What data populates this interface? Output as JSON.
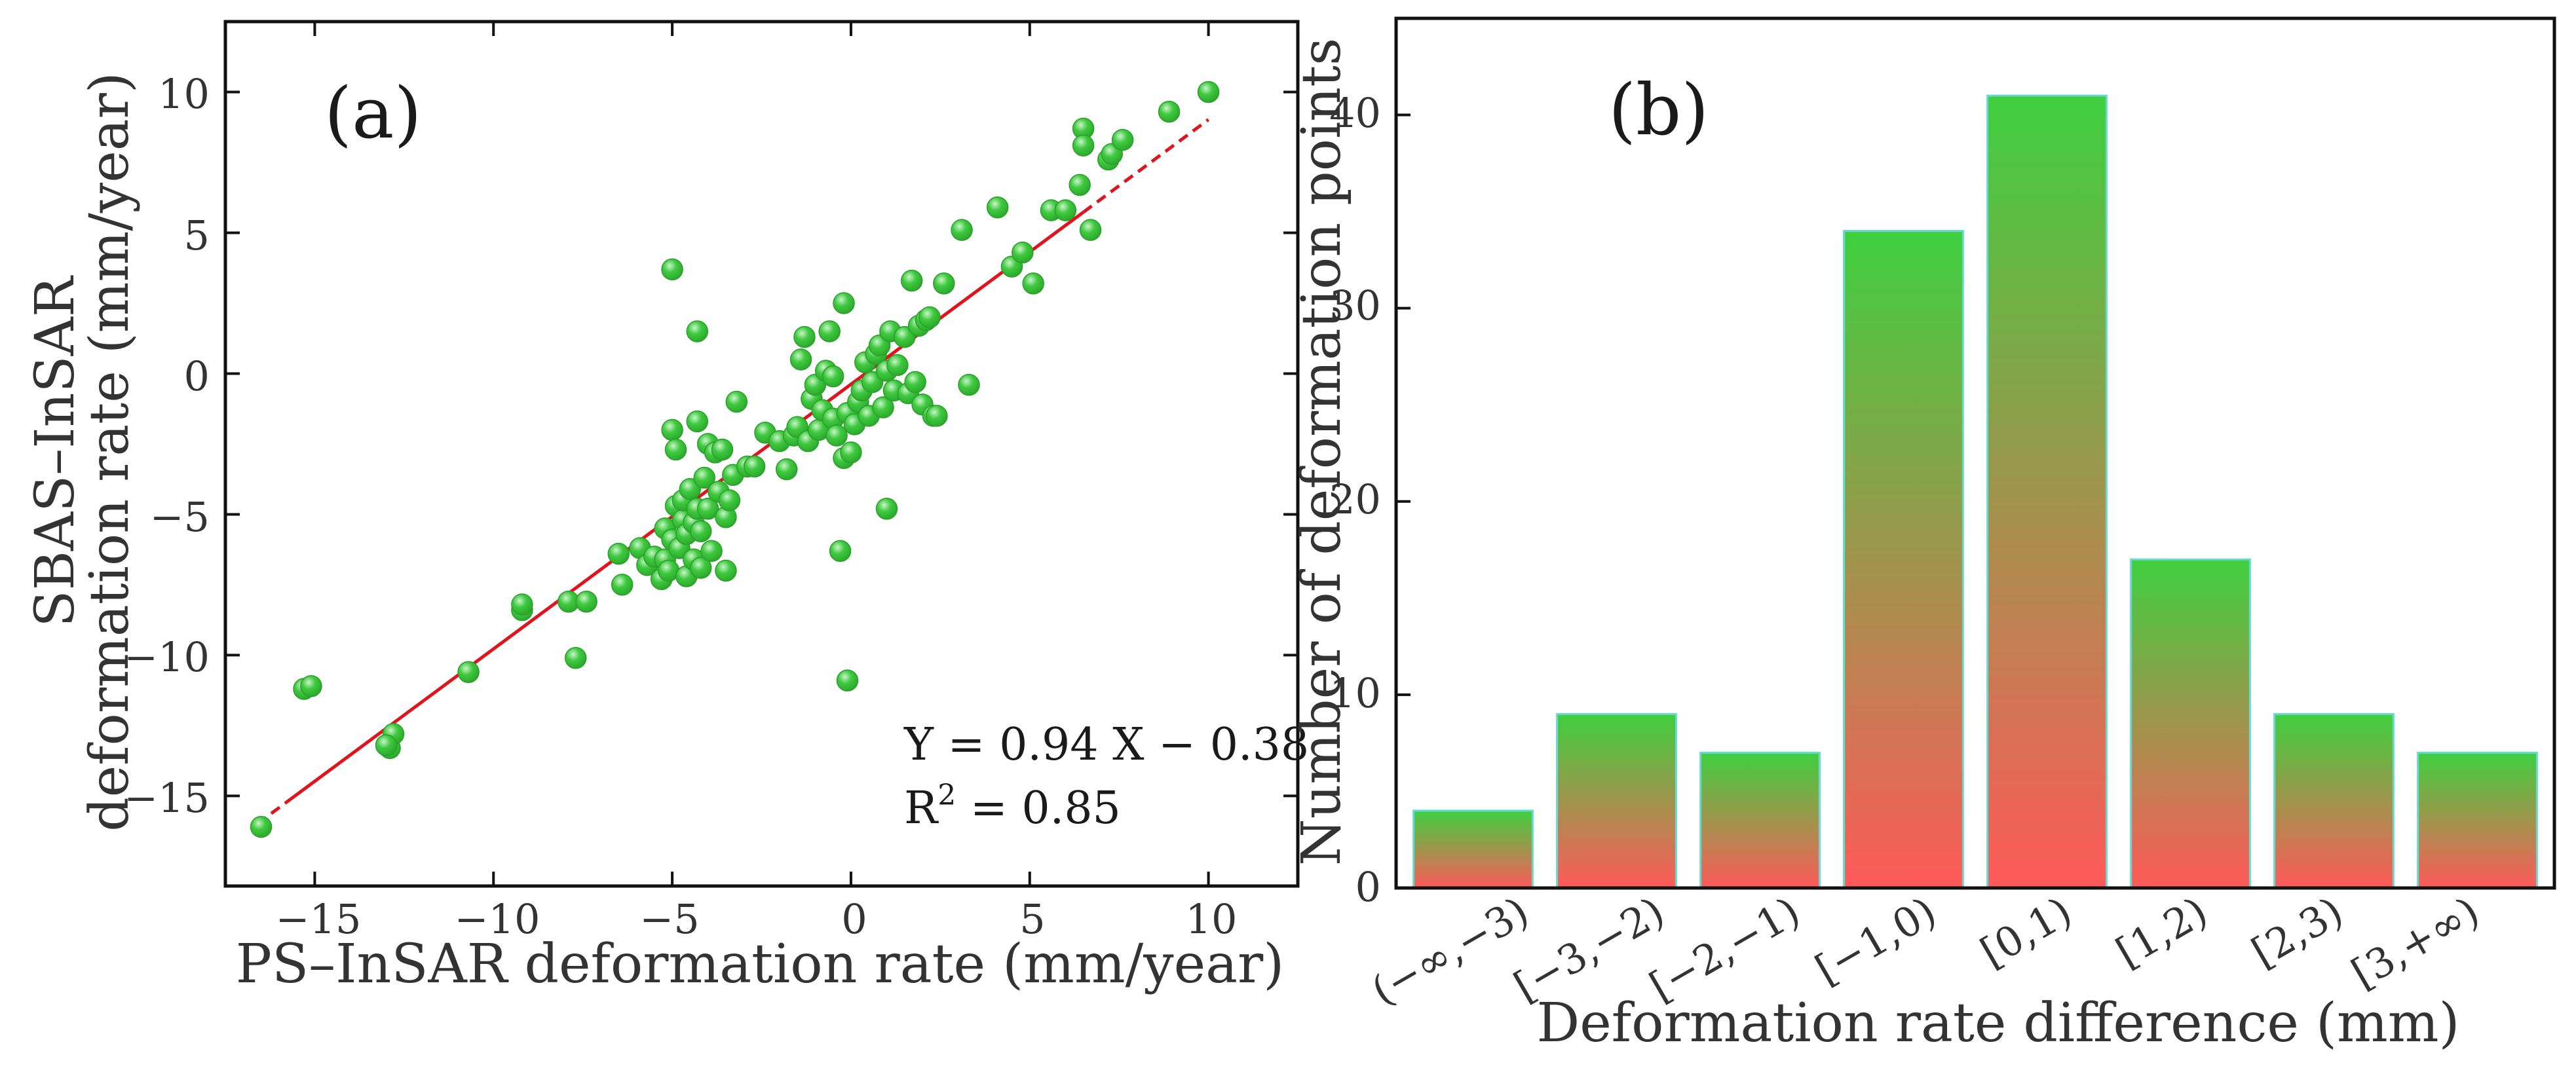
{
  "colors": {
    "point_fill": "#3fc93f",
    "point_highlight": "#c8f5c8",
    "fit_line": "#e0141c",
    "bar_top": "#3fcf3f",
    "bar_bottom": "#ff5a5a",
    "bar_stroke": "#66d9d0",
    "axis": "#111111"
  },
  "chart_data": [
    {
      "type": "scatter",
      "panel_label": "(a)",
      "xlabel": "PS–InSAR deformation rate (mm/year)",
      "ylabel_line1": "SBAS–InSAR",
      "ylabel_line2": "deformation rate (mm/year)",
      "xlim": [
        -17.5,
        12.5
      ],
      "ylim": [
        -18.2,
        12.5
      ],
      "xticks": [
        -15,
        -10,
        -5,
        0,
        5,
        10
      ],
      "yticks": [
        -15,
        -10,
        -5,
        0,
        5,
        10
      ],
      "xtick_labels": [
        "−15",
        "−10",
        "−5",
        "0",
        "5",
        "10"
      ],
      "ytick_labels": [
        "−15",
        "−10",
        "−5",
        "0",
        "5",
        "10"
      ],
      "fit": {
        "slope": 0.94,
        "intercept": -0.38,
        "solid_range": [
          -15.8,
          6.5
        ],
        "dashed_ranges": [
          [
            -16.6,
            -15.8
          ],
          [
            6.5,
            10.0
          ]
        ],
        "equation": "Y = 0.94 X − 0.38",
        "r2_prefix": "R",
        "r2_sup": "2",
        "r2_suffix": " = 0.85"
      },
      "points": [
        [
          -16.5,
          -16.1
        ],
        [
          -15.3,
          -11.2
        ],
        [
          -15.1,
          -11.1
        ],
        [
          -12.9,
          -13.3
        ],
        [
          -12.8,
          -12.8
        ],
        [
          -13.0,
          -13.2
        ],
        [
          -10.7,
          -10.6
        ],
        [
          -9.2,
          -8.4
        ],
        [
          -9.2,
          -8.2
        ],
        [
          -7.9,
          -8.1
        ],
        [
          -7.7,
          -10.1
        ],
        [
          -7.4,
          -8.1
        ],
        [
          -6.5,
          -6.4
        ],
        [
          -6.4,
          -7.5
        ],
        [
          -5.9,
          -6.2
        ],
        [
          -5.7,
          -6.8
        ],
        [
          -5.5,
          -6.5
        ],
        [
          -5.3,
          -7.3
        ],
        [
          -5.2,
          -6.6
        ],
        [
          -5.2,
          -5.5
        ],
        [
          -5.1,
          -7.0
        ],
        [
          -5.0,
          -5.9
        ],
        [
          -5.0,
          -2.0
        ],
        [
          -4.9,
          -4.7
        ],
        [
          -4.9,
          -2.7
        ],
        [
          -4.8,
          -6.2
        ],
        [
          -4.7,
          -5.2
        ],
        [
          -4.7,
          -4.5
        ],
        [
          -4.6,
          -7.2
        ],
        [
          -4.6,
          -5.7
        ],
        [
          -4.5,
          -4.1
        ],
        [
          -4.4,
          -6.6
        ],
        [
          -4.4,
          -5.3
        ],
        [
          -4.3,
          -4.8
        ],
        [
          -4.3,
          -1.7
        ],
        [
          -4.2,
          -6.9
        ],
        [
          -4.2,
          -5.6
        ],
        [
          -4.1,
          -3.7
        ],
        [
          -4.0,
          -2.5
        ],
        [
          -4.0,
          -4.8
        ],
        [
          -3.9,
          -6.3
        ],
        [
          -3.8,
          -2.8
        ],
        [
          -3.7,
          -4.2
        ],
        [
          -3.6,
          -2.7
        ],
        [
          -3.5,
          -5.1
        ],
        [
          -3.5,
          -7.0
        ],
        [
          -3.4,
          -4.5
        ],
        [
          -3.3,
          -3.6
        ],
        [
          -3.2,
          -1.0
        ],
        [
          -2.9,
          -3.3
        ],
        [
          -2.7,
          -3.3
        ],
        [
          -5.0,
          3.7
        ],
        [
          -4.3,
          1.5
        ],
        [
          -2.4,
          -2.1
        ],
        [
          -2.0,
          -2.4
        ],
        [
          -1.8,
          -3.4
        ],
        [
          -1.6,
          -2.2
        ],
        [
          -1.5,
          -1.9
        ],
        [
          -1.4,
          0.5
        ],
        [
          -1.3,
          1.3
        ],
        [
          -1.2,
          -2.4
        ],
        [
          -1.1,
          -0.9
        ],
        [
          -1.0,
          -0.4
        ],
        [
          -0.9,
          -2.0
        ],
        [
          -0.8,
          -1.3
        ],
        [
          -0.7,
          0.1
        ],
        [
          -0.6,
          1.5
        ],
        [
          -0.5,
          -1.6
        ],
        [
          -0.4,
          -2.2
        ],
        [
          -0.3,
          -6.3
        ],
        [
          -0.2,
          -3.0
        ],
        [
          -0.2,
          2.5
        ],
        [
          -0.1,
          -1.4
        ],
        [
          0.0,
          -2.8
        ],
        [
          0.1,
          -1.8
        ],
        [
          0.2,
          -1.0
        ],
        [
          0.3,
          -0.6
        ],
        [
          0.4,
          0.4
        ],
        [
          0.5,
          -1.5
        ],
        [
          0.6,
          -0.3
        ],
        [
          0.7,
          0.7
        ],
        [
          0.8,
          1.0
        ],
        [
          0.9,
          -1.2
        ],
        [
          1.0,
          0.1
        ],
        [
          1.1,
          1.5
        ],
        [
          1.2,
          -0.6
        ],
        [
          1.3,
          0.3
        ],
        [
          1.5,
          1.3
        ],
        [
          1.6,
          -0.7
        ],
        [
          1.7,
          3.3
        ],
        [
          1.8,
          -0.3
        ],
        [
          1.9,
          1.7
        ],
        [
          2.0,
          -1.1
        ],
        [
          2.1,
          1.9
        ],
        [
          2.2,
          2.0
        ],
        [
          2.3,
          -1.5
        ],
        [
          2.4,
          -1.5
        ],
        [
          2.6,
          3.2
        ],
        [
          3.1,
          5.1
        ],
        [
          3.3,
          -0.4
        ],
        [
          4.1,
          5.9
        ],
        [
          4.5,
          3.8
        ],
        [
          4.8,
          4.3
        ],
        [
          5.1,
          3.2
        ],
        [
          5.6,
          5.8
        ],
        [
          6.0,
          5.8
        ],
        [
          6.4,
          6.7
        ],
        [
          6.5,
          8.7
        ],
        [
          6.5,
          8.1
        ],
        [
          6.7,
          5.1
        ],
        [
          7.2,
          7.6
        ],
        [
          7.3,
          7.8
        ],
        [
          7.6,
          8.3
        ],
        [
          8.9,
          9.3
        ],
        [
          10.0,
          10.0
        ],
        [
          -0.1,
          -10.9
        ],
        [
          1.0,
          -4.8
        ],
        [
          -0.5,
          -0.1
        ]
      ]
    },
    {
      "type": "bar",
      "panel_label": "(b)",
      "xlabel": "Deformation rate difference (mm)",
      "ylabel": "Number of deformation points",
      "ylim": [
        0,
        45
      ],
      "yticks": [
        0,
        10,
        20,
        30,
        40
      ],
      "ytick_labels": [
        "0",
        "10",
        "20",
        "30",
        "40"
      ],
      "categories": [
        "(−∞,−3)",
        "[−3,−2)",
        "[−2,−1)",
        "[−1,0)",
        "[0,1)",
        "[1,2)",
        "[2,3)",
        "[3,+∞)"
      ],
      "values": [
        4,
        9,
        7,
        34,
        41,
        17,
        9,
        7
      ]
    }
  ]
}
